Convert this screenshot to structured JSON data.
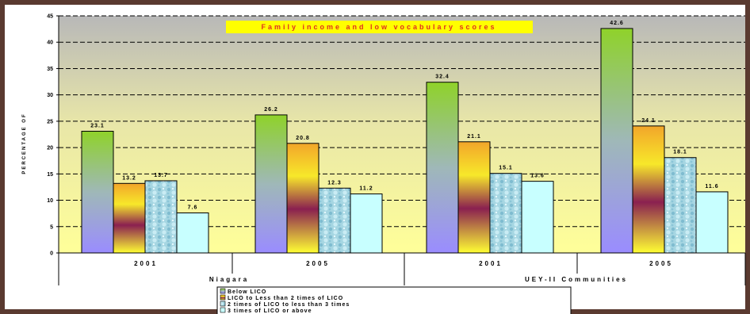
{
  "chart_data": {
    "type": "bar",
    "title": "Family income and low vocabulary scores",
    "ylabel": "PERCENTAGE OF",
    "xlabel": "",
    "ylim": [
      0,
      45
    ],
    "yticks": [
      0,
      5,
      10,
      15,
      20,
      25,
      30,
      35,
      40,
      45
    ],
    "grid": true,
    "legend_position": "bottom",
    "groups": [
      {
        "label": "Niagara",
        "categories": [
          "2001",
          "2005"
        ]
      },
      {
        "label": "UEY-II Communities",
        "categories": [
          "2001",
          "2005"
        ]
      }
    ],
    "categories": [
      "2001",
      "2005",
      "2001",
      "2005"
    ],
    "series": [
      {
        "name": "Below LICO",
        "values": [
          23.1,
          26.2,
          32.4,
          42.6
        ]
      },
      {
        "name": "LICO to Less than 2 times of LICO",
        "values": [
          13.2,
          20.8,
          21.1,
          24.1
        ]
      },
      {
        "name": "2 times of LICO to less than 3 times",
        "values": [
          13.7,
          12.3,
          15.1,
          18.1
        ]
      },
      {
        "name": "3 times of LICO or above",
        "values": [
          7.6,
          11.2,
          13.6,
          11.6
        ]
      }
    ],
    "data_labels": [
      [
        "23.1",
        "26.2",
        "32.4",
        "42.6"
      ],
      [
        "13.2",
        "20.8",
        "21.1",
        "24.1"
      ],
      [
        "13.7",
        "12.3",
        "15.1",
        "18.1"
      ],
      [
        "7.6",
        "11.2",
        "13.6",
        "11.6"
      ]
    ]
  },
  "colors": {
    "plot_top": "#b8b8b8",
    "plot_bottom": "#ffff99",
    "title_bg": "#ffff00",
    "title_text": "#e0301e",
    "frame": "#5a3a30"
  }
}
